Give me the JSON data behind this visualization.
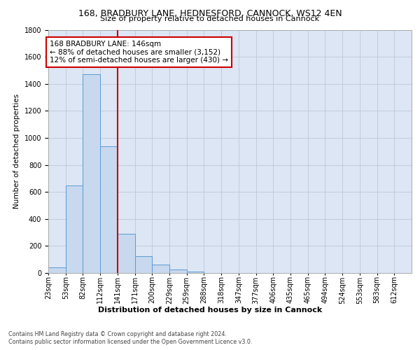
{
  "title1": "168, BRADBURY LANE, HEDNESFORD, CANNOCK, WS12 4EN",
  "title2": "Size of property relative to detached houses in Cannock",
  "xlabel": "Distribution of detached houses by size in Cannock",
  "ylabel": "Number of detached properties",
  "footer1": "Contains HM Land Registry data © Crown copyright and database right 2024.",
  "footer2": "Contains public sector information licensed under the Open Government Licence v3.0.",
  "annotation_line1": "168 BRADBURY LANE: 146sqm",
  "annotation_line2": "← 88% of detached houses are smaller (3,152)",
  "annotation_line3": "12% of semi-detached houses are larger (430) →",
  "bar_labels": [
    "23sqm",
    "53sqm",
    "82sqm",
    "112sqm",
    "141sqm",
    "171sqm",
    "200sqm",
    "229sqm",
    "259sqm",
    "288sqm",
    "318sqm",
    "347sqm",
    "377sqm",
    "406sqm",
    "435sqm",
    "465sqm",
    "494sqm",
    "524sqm",
    "553sqm",
    "583sqm",
    "612sqm"
  ],
  "bar_values": [
    40,
    650,
    1470,
    935,
    290,
    125,
    60,
    25,
    12,
    0,
    0,
    0,
    0,
    0,
    0,
    0,
    0,
    0,
    0,
    0,
    0
  ],
  "n_bars": 21,
  "bar_color": "#c8d8ee",
  "bar_edge_color": "#5b9bd5",
  "vline_color": "#cc0000",
  "vline_bar_index": 4,
  "annotation_box_color": "#cc0000",
  "grid_color": "#c0c8d8",
  "background_color": "#dce6f5",
  "ylim": [
    0,
    1800
  ],
  "yticks": [
    0,
    200,
    400,
    600,
    800,
    1000,
    1200,
    1400,
    1600,
    1800
  ],
  "title1_fontsize": 9,
  "title2_fontsize": 8,
  "ylabel_fontsize": 7.5,
  "xlabel_fontsize": 8,
  "tick_fontsize": 7,
  "annotation_fontsize": 7.5,
  "footer_fontsize": 5.8
}
